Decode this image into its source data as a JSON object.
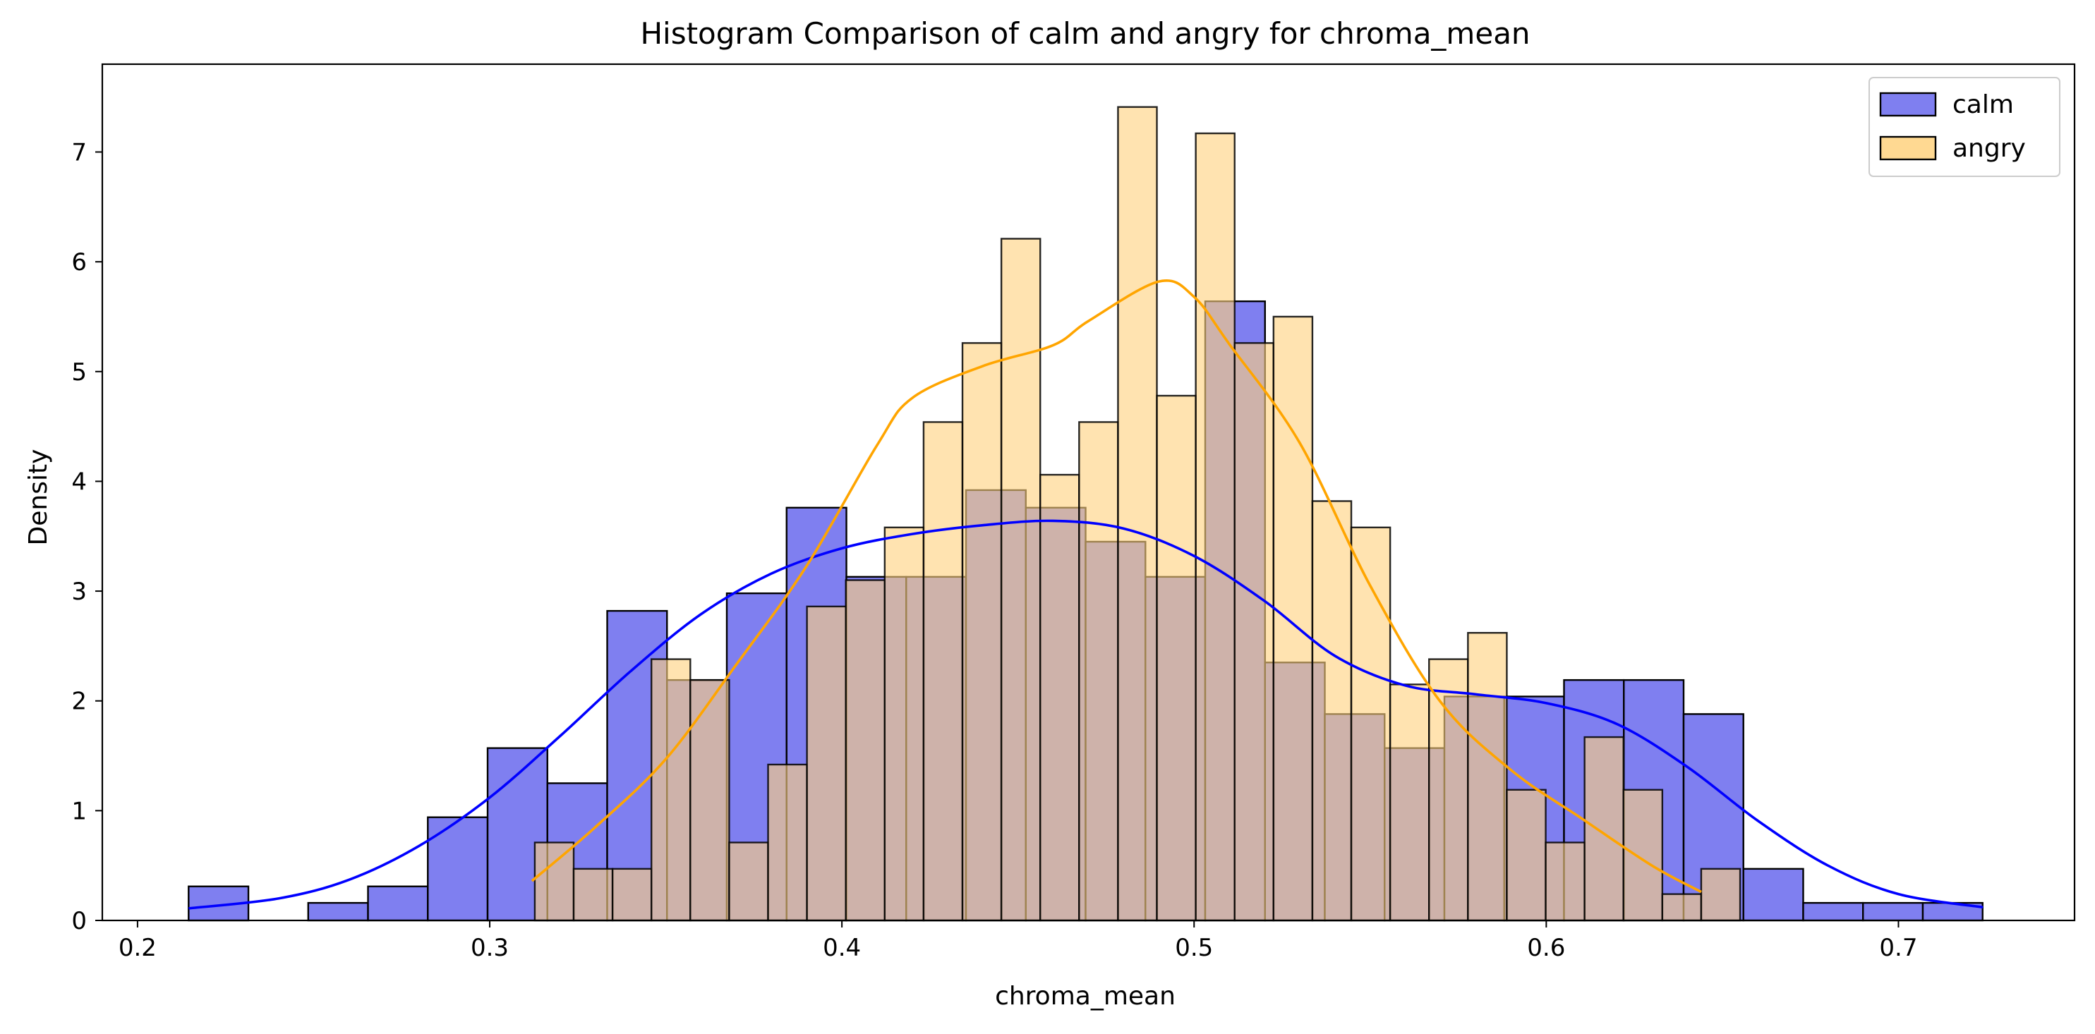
{
  "chart_data": {
    "type": "histogram",
    "title": "Histogram Comparison of calm and angry for chroma_mean",
    "xlabel": "chroma_mean",
    "ylabel": "Density",
    "xlim": [
      0.19,
      0.75
    ],
    "ylim": [
      0,
      7.8
    ],
    "xticks": [
      "0.2",
      "0.3",
      "0.4",
      "0.5",
      "0.6",
      "0.7"
    ],
    "xtick_values": [
      0.2,
      0.3,
      0.4,
      0.5,
      0.6,
      0.7
    ],
    "yticks": [
      "0",
      "1",
      "2",
      "3",
      "4",
      "5",
      "6",
      "7"
    ],
    "ytick_values": [
      0,
      1,
      2,
      3,
      4,
      5,
      6,
      7
    ],
    "grid": false,
    "legend_position": "top-right",
    "series": [
      {
        "name": "calm",
        "color": "#0000ff",
        "fill": "#7f7ff0",
        "kde_color": "#0000ff",
        "bin_start": 0.2145,
        "bin_width": 0.01698,
        "densities": [
          0.31,
          0,
          0.16,
          0.31,
          0.94,
          1.57,
          1.25,
          2.82,
          2.19,
          2.98,
          3.76,
          3.13,
          3.13,
          3.92,
          3.76,
          3.45,
          3.13,
          5.64,
          2.35,
          1.88,
          1.57,
          2.04,
          2.04,
          2.19,
          2.19,
          1.88,
          0.47,
          0.16,
          0.16,
          0.16
        ],
        "kde_x": [
          0.2145,
          0.24,
          0.26,
          0.28,
          0.3,
          0.32,
          0.34,
          0.36,
          0.38,
          0.4,
          0.42,
          0.44,
          0.46,
          0.48,
          0.5,
          0.52,
          0.54,
          0.56,
          0.58,
          0.6,
          0.62,
          0.64,
          0.66,
          0.68,
          0.7,
          0.724
        ],
        "kde_y": [
          0.11,
          0.2,
          0.37,
          0.68,
          1.12,
          1.68,
          2.27,
          2.79,
          3.16,
          3.39,
          3.52,
          3.6,
          3.64,
          3.57,
          3.32,
          2.91,
          2.41,
          2.14,
          2.06,
          1.98,
          1.79,
          1.4,
          0.91,
          0.5,
          0.24,
          0.12
        ]
      },
      {
        "name": "angry",
        "color": "#ffa500",
        "fill": "#ffd27f",
        "kde_color": "#ffa500",
        "bin_start": 0.3128,
        "bin_width": 0.01104,
        "densities": [
          0.71,
          0.47,
          0.47,
          2.38,
          2.19,
          0.71,
          1.42,
          2.86,
          3.1,
          3.58,
          4.54,
          5.26,
          6.21,
          4.06,
          4.54,
          7.41,
          4.78,
          7.17,
          5.26,
          5.5,
          3.82,
          3.58,
          2.15,
          2.38,
          2.62,
          1.19,
          0.71,
          1.67,
          1.19,
          0.24,
          0.47
        ],
        "kde_x": [
          0.312,
          0.33,
          0.35,
          0.37,
          0.39,
          0.41,
          0.42,
          0.44,
          0.46,
          0.47,
          0.49,
          0.5,
          0.51,
          0.53,
          0.55,
          0.57,
          0.59,
          0.61,
          0.63,
          0.644
        ],
        "kde_y": [
          0.36,
          0.85,
          1.47,
          2.33,
          3.23,
          4.33,
          4.76,
          5.05,
          5.24,
          5.46,
          5.82,
          5.68,
          5.25,
          4.35,
          3.05,
          1.99,
          1.37,
          0.93,
          0.5,
          0.26
        ]
      }
    ]
  }
}
